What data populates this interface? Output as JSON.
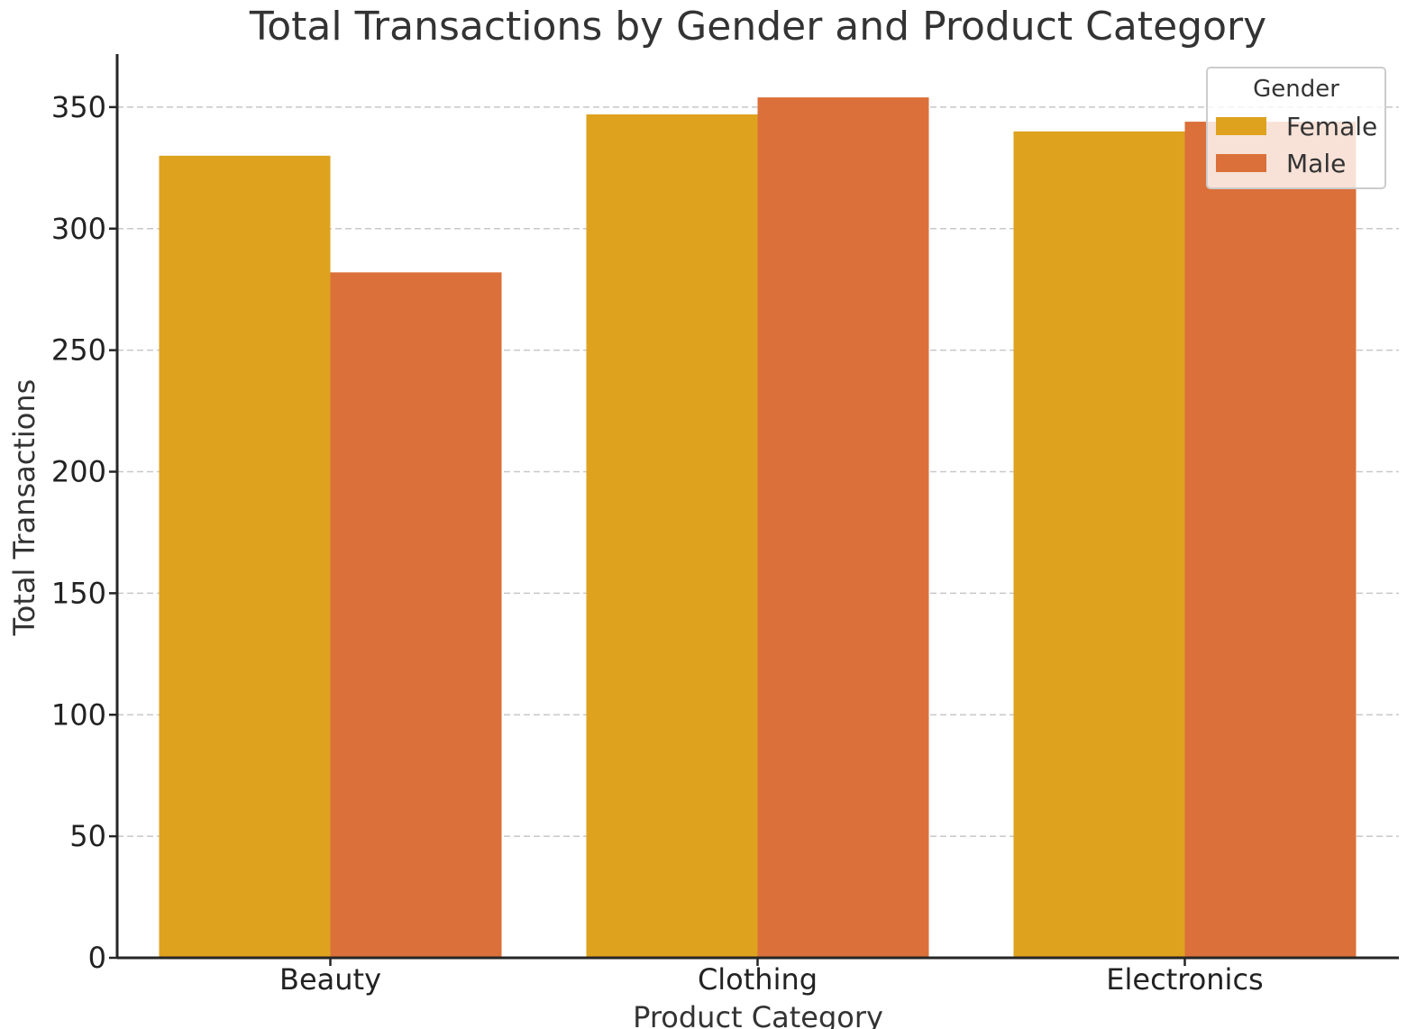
{
  "chart_data": {
    "type": "bar",
    "title": "Total Transactions by Gender and Product Category",
    "xlabel": "Product Category",
    "ylabel": "Total Transactions",
    "categories": [
      "Beauty",
      "Clothing",
      "Electronics"
    ],
    "series": [
      {
        "name": "Female",
        "values": [
          330,
          347,
          340
        ],
        "color": "#dea21f"
      },
      {
        "name": "Male",
        "values": [
          282,
          354,
          344
        ],
        "color": "#db703a"
      }
    ],
    "ylim": [
      0,
      372
    ],
    "yticks": [
      0,
      50,
      100,
      150,
      200,
      250,
      300,
      350
    ],
    "grid": "horizontal dashed",
    "legend": {
      "title": "Gender",
      "placement": "top-right"
    }
  }
}
